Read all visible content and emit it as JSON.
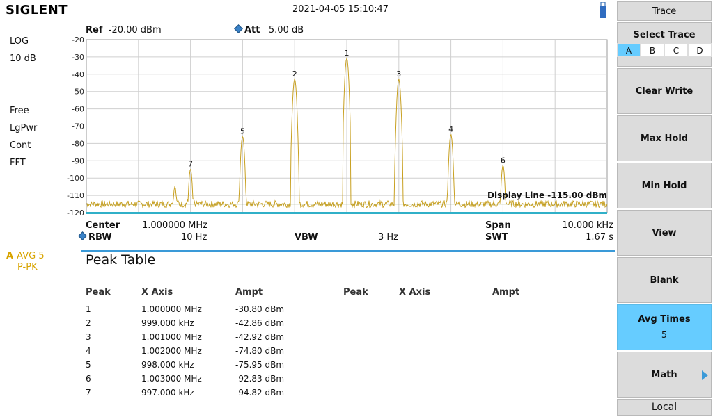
{
  "brand": "SIGLENT",
  "datetime": "2021-04-05   15:10:47",
  "left_status": {
    "scale": "LOG",
    "div": "10 dB",
    "trig": "Free",
    "detector": "LgPwr",
    "sweep": "Cont",
    "mode": "FFT",
    "trace_letter": "A",
    "trace_avg": "AVG 5",
    "trace_det": "P-PK"
  },
  "header": {
    "ref_label": "Ref",
    "ref_value": "-20.00 dBm",
    "att_label": "Att",
    "att_value": "5.00 dB"
  },
  "plot": {
    "y_ticks": [
      "-20",
      "-30",
      "-40",
      "-50",
      "-60",
      "-70",
      "-80",
      "-90",
      "-100",
      "-110",
      "-120"
    ],
    "display_line_label": "Display Line -115.00 dBm",
    "colors": {
      "trace": "#c8a020",
      "grid": "#cfcfcf",
      "display_line": "#6a7a2a",
      "baseline": "#30b0c8"
    }
  },
  "chart_data": {
    "type": "line",
    "title": "",
    "xlabel": "",
    "ylabel": "",
    "ylim": [
      -120,
      -20
    ],
    "xlim_mhz": [
      0.995,
      1.005
    ],
    "noise_floor_dbm": -115,
    "display_line_dbm": -115,
    "markers": [
      {
        "label": "1",
        "x_mhz": 1.0,
        "y_dbm": -30.8
      },
      {
        "label": "2",
        "x_mhz": 0.999,
        "y_dbm": -42.86
      },
      {
        "label": "3",
        "x_mhz": 1.001,
        "y_dbm": -42.92
      },
      {
        "label": "4",
        "x_mhz": 1.002,
        "y_dbm": -74.8
      },
      {
        "label": "5",
        "x_mhz": 0.998,
        "y_dbm": -75.95
      },
      {
        "label": "6",
        "x_mhz": 1.003,
        "y_dbm": -92.83
      },
      {
        "label": "7",
        "x_mhz": 0.997,
        "y_dbm": -94.82
      }
    ],
    "extra_spurs": [
      {
        "x_mhz": 0.9967,
        "y_dbm": -105
      }
    ]
  },
  "freq": {
    "center_label": "Center",
    "center_value": "1.000000 MHz",
    "span_label": "Span",
    "span_value": "10.000 kHz",
    "rbw_label": "RBW",
    "rbw_value": "10 Hz",
    "vbw_label": "VBW",
    "vbw_value": "3 Hz",
    "swt_label": "SWT",
    "swt_value": "1.67 s"
  },
  "peak_table": {
    "title": "Peak Table",
    "headers": [
      "Peak",
      "X Axis",
      "Ampt",
      "Peak",
      "X Axis",
      "Ampt"
    ],
    "rows": [
      {
        "peak": "1",
        "x": "1.000000 MHz",
        "ampt": "-30.80 dBm"
      },
      {
        "peak": "2",
        "x": "999.000 kHz",
        "ampt": "-42.86 dBm"
      },
      {
        "peak": "3",
        "x": "1.001000 MHz",
        "ampt": "-42.92 dBm"
      },
      {
        "peak": "4",
        "x": "1.002000 MHz",
        "ampt": "-74.80 dBm"
      },
      {
        "peak": "5",
        "x": "998.000 kHz",
        "ampt": "-75.95 dBm"
      },
      {
        "peak": "6",
        "x": "1.003000 MHz",
        "ampt": "-92.83 dBm"
      },
      {
        "peak": "7",
        "x": "997.000 kHz",
        "ampt": "-94.82 dBm"
      }
    ]
  },
  "menu": {
    "title": "Trace",
    "select_trace": "Select Trace",
    "trace_options": [
      "A",
      "B",
      "C",
      "D"
    ],
    "selected_trace": "A",
    "clear_write": "Clear Write",
    "max_hold": "Max Hold",
    "min_hold": "Min Hold",
    "view": "View",
    "blank": "Blank",
    "avg_times": "Avg Times",
    "avg_times_value": "5",
    "math": "Math",
    "local": "Local"
  }
}
